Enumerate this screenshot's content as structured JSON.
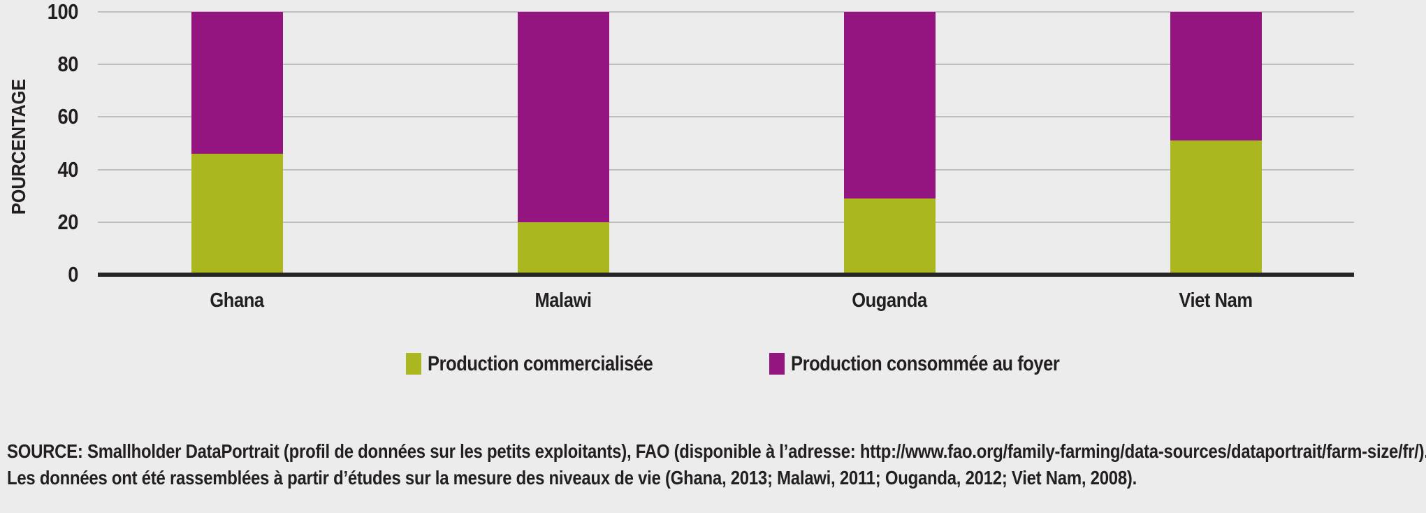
{
  "background_color": "#ececec",
  "text_color": "#231f20",
  "axis_color": "#262626",
  "gridline_color": "#bfbfbf",
  "chart_data": {
    "type": "bar",
    "stacked": true,
    "title": "",
    "xlabel": "",
    "ylabel": "POURCENTAGE",
    "ylim": [
      0,
      100
    ],
    "yticks": [
      0,
      20,
      40,
      60,
      80,
      100
    ],
    "grid": true,
    "legend_position": "bottom",
    "categories": [
      "Ghana",
      "Malawi",
      "Ouganda",
      "Viet Nam"
    ],
    "series": [
      {
        "name": "Production commercialisée",
        "color": "#abb71e",
        "values": [
          46,
          20,
          29,
          51
        ]
      },
      {
        "name": "Production consommée au foyer",
        "color": "#941480",
        "values": [
          54,
          80,
          71,
          49
        ]
      }
    ]
  },
  "source": {
    "line1": "SOURCE: Smallholder DataPortrait (profil de données sur les petits exploitants), FAO (disponible à l’adresse: http://www.fao.org/family-farming/data-sources/dataportrait/farm-size/fr/).",
    "line2": "Les données ont été rassemblées à partir d’études sur la mesure des niveaux de vie (Ghana, 2013; Malawi, 2011; Ouganda, 2012; Viet Nam, 2008)."
  }
}
